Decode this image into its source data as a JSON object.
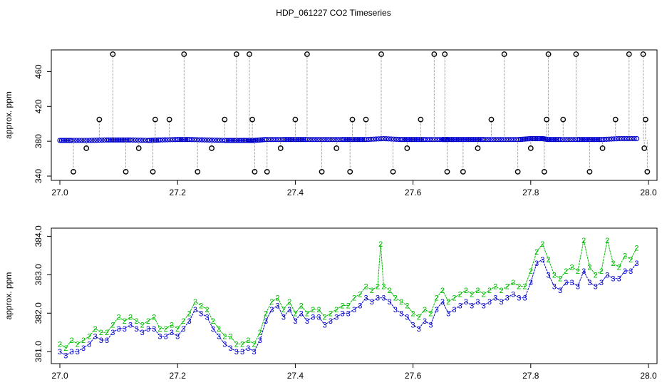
{
  "chart_data": [
    {
      "type": "scatter",
      "title": "HDP_061227  CO2 Timeseries",
      "xlabel": "",
      "ylabel": "approx. ppm",
      "xlim": [
        27.0,
        28.0
      ],
      "ylim": [
        340,
        480
      ],
      "x_ticks": [
        27.0,
        27.2,
        27.4,
        27.6,
        27.8,
        28.0
      ],
      "x_tick_labels": [
        "27.0",
        "27.2",
        "27.4",
        "27.6",
        "27.8",
        "28.0"
      ],
      "y_ticks": [
        340,
        380,
        420,
        460
      ],
      "y_tick_labels": [
        "340",
        "380",
        "420",
        "460"
      ],
      "grid": false,
      "series": [
        {
          "color": "#0000cc",
          "marker": "circle",
          "x": [
            27.0,
            27.02,
            27.05,
            27.08,
            27.1,
            27.12,
            27.15,
            27.17,
            27.2,
            27.22,
            27.25,
            27.28,
            27.3,
            27.32,
            27.33,
            27.35,
            27.38,
            27.4,
            27.42,
            27.45,
            27.48,
            27.5,
            27.52,
            27.55,
            27.58,
            27.6,
            27.62,
            27.65,
            27.66,
            27.68,
            27.7,
            27.72,
            27.75,
            27.78,
            27.8,
            27.82,
            27.83,
            27.85,
            27.88,
            27.9,
            27.92,
            27.95,
            27.98
          ],
          "y": [
            381,
            381,
            381,
            381.5,
            381.5,
            381.5,
            381,
            381.5,
            382,
            382,
            381.5,
            381,
            381,
            381,
            381,
            382,
            382,
            382,
            382,
            382,
            382,
            382,
            382,
            383,
            382,
            382,
            382,
            382,
            382,
            382,
            382,
            382,
            382,
            382,
            383,
            383,
            382,
            382,
            382,
            382,
            382,
            383,
            383
          ]
        },
        {
          "color": "#000000",
          "marker": "open-circle",
          "x": [
            27.023,
            27.045,
            27.067,
            27.09,
            27.112,
            27.134,
            27.158,
            27.162,
            27.186,
            27.211,
            27.234,
            27.258,
            27.28,
            27.3,
            27.322,
            27.327,
            27.331,
            27.352,
            27.375,
            27.4,
            27.42,
            27.445,
            27.47,
            27.493,
            27.497,
            27.52,
            27.546,
            27.566,
            27.59,
            27.613,
            27.636,
            27.654,
            27.658,
            27.685,
            27.71,
            27.733,
            27.755,
            27.778,
            27.8,
            27.823,
            27.827,
            27.83,
            27.855,
            27.877,
            27.9,
            27.922,
            27.944,
            27.967,
            27.991,
            27.995,
            27.993,
            27.998
          ],
          "y": [
            345,
            372,
            405,
            480,
            345,
            372,
            345,
            405,
            405,
            480,
            345,
            372,
            405,
            480,
            480,
            405,
            345,
            345,
            372,
            405,
            480,
            345,
            372,
            345,
            405,
            405,
            480,
            345,
            372,
            405,
            480,
            480,
            345,
            345,
            372,
            405,
            480,
            345,
            372,
            345,
            405,
            480,
            405,
            480,
            345,
            372,
            405,
            480,
            480,
            405,
            372,
            345
          ]
        }
      ]
    },
    {
      "type": "scatter",
      "title": "",
      "xlabel": "",
      "ylabel": "approx. ppm",
      "xlim": [
        27.0,
        28.0
      ],
      "ylim": [
        380.8,
        384.1
      ],
      "x_ticks": [
        27.0,
        27.2,
        27.4,
        27.6,
        27.8,
        28.0
      ],
      "x_tick_labels": [
        "27.0",
        "27.2",
        "27.4",
        "27.6",
        "27.8",
        "28.0"
      ],
      "y_ticks": [
        381.0,
        382.0,
        383.0,
        384.0
      ],
      "y_tick_labels": [
        "381.0",
        "382.0",
        "383.0",
        "384.0"
      ],
      "grid": false,
      "series": [
        {
          "name": "2",
          "color": "#00bb00",
          "marker": "2",
          "x": [
            27.0,
            27.01,
            27.02,
            27.03,
            27.04,
            27.05,
            27.06,
            27.07,
            27.08,
            27.09,
            27.1,
            27.11,
            27.12,
            27.13,
            27.14,
            27.15,
            27.16,
            27.17,
            27.18,
            27.19,
            27.2,
            27.21,
            27.22,
            27.23,
            27.24,
            27.25,
            27.26,
            27.27,
            27.28,
            27.29,
            27.3,
            27.31,
            27.32,
            27.33,
            27.34,
            27.35,
            27.36,
            27.37,
            27.38,
            27.39,
            27.4,
            27.41,
            27.42,
            27.43,
            27.44,
            27.45,
            27.46,
            27.47,
            27.48,
            27.49,
            27.5,
            27.51,
            27.52,
            27.53,
            27.54,
            27.545,
            27.55,
            27.56,
            27.57,
            27.58,
            27.59,
            27.6,
            27.61,
            27.62,
            27.63,
            27.64,
            27.65,
            27.66,
            27.67,
            27.68,
            27.69,
            27.7,
            27.71,
            27.72,
            27.73,
            27.74,
            27.75,
            27.76,
            27.77,
            27.78,
            27.79,
            27.8,
            27.81,
            27.82,
            27.83,
            27.84,
            27.85,
            27.86,
            27.87,
            27.88,
            27.89,
            27.9,
            27.91,
            27.92,
            27.93,
            27.94,
            27.95,
            27.96,
            27.97,
            27.98
          ],
          "y": [
            381.2,
            381.1,
            381.3,
            381.2,
            381.3,
            381.4,
            381.6,
            381.5,
            381.5,
            381.7,
            381.9,
            381.8,
            381.9,
            381.8,
            381.7,
            381.8,
            381.9,
            381.6,
            381.6,
            381.7,
            381.6,
            381.8,
            382.0,
            382.3,
            382.2,
            382.1,
            381.8,
            381.6,
            381.4,
            381.4,
            381.2,
            381.2,
            381.3,
            381.2,
            381.5,
            382.0,
            382.3,
            382.4,
            382.1,
            382.3,
            382.0,
            382.2,
            382.0,
            382.1,
            382.1,
            381.9,
            382.0,
            382.1,
            382.2,
            382.2,
            382.4,
            382.5,
            382.7,
            382.6,
            382.7,
            383.8,
            382.7,
            382.6,
            382.4,
            382.3,
            382.2,
            382.0,
            381.9,
            382.1,
            382.0,
            382.4,
            382.6,
            382.3,
            382.4,
            382.5,
            382.6,
            382.5,
            382.6,
            382.5,
            382.6,
            382.7,
            382.6,
            382.7,
            382.8,
            382.7,
            382.7,
            383.1,
            383.6,
            383.8,
            383.4,
            383.0,
            382.9,
            383.1,
            383.2,
            383.1,
            383.9,
            383.2,
            383.0,
            383.1,
            383.9,
            383.3,
            383.2,
            383.5,
            383.4,
            383.7
          ]
        },
        {
          "name": "3",
          "color": "#0000cc",
          "marker": "3",
          "x": [
            27.0,
            27.01,
            27.02,
            27.03,
            27.04,
            27.05,
            27.06,
            27.07,
            27.08,
            27.09,
            27.1,
            27.11,
            27.12,
            27.13,
            27.14,
            27.15,
            27.16,
            27.17,
            27.18,
            27.19,
            27.2,
            27.21,
            27.22,
            27.23,
            27.24,
            27.25,
            27.26,
            27.27,
            27.28,
            27.29,
            27.3,
            27.31,
            27.32,
            27.33,
            27.34,
            27.35,
            27.36,
            27.37,
            27.38,
            27.39,
            27.4,
            27.41,
            27.42,
            27.43,
            27.44,
            27.45,
            27.46,
            27.47,
            27.48,
            27.49,
            27.5,
            27.51,
            27.52,
            27.53,
            27.54,
            27.55,
            27.56,
            27.57,
            27.58,
            27.59,
            27.6,
            27.61,
            27.62,
            27.63,
            27.64,
            27.65,
            27.66,
            27.67,
            27.68,
            27.69,
            27.7,
            27.71,
            27.72,
            27.73,
            27.74,
            27.75,
            27.76,
            27.77,
            27.78,
            27.79,
            27.8,
            27.81,
            27.82,
            27.83,
            27.84,
            27.85,
            27.86,
            27.87,
            27.88,
            27.89,
            27.9,
            27.91,
            27.92,
            27.93,
            27.94,
            27.95,
            27.96,
            27.97,
            27.98
          ],
          "y": [
            381.0,
            380.9,
            381.0,
            381.0,
            381.1,
            381.2,
            381.4,
            381.3,
            381.3,
            381.5,
            381.6,
            381.6,
            381.7,
            381.6,
            381.5,
            381.6,
            381.6,
            381.4,
            381.4,
            381.5,
            381.4,
            381.6,
            381.8,
            382.1,
            382.0,
            381.9,
            381.6,
            381.4,
            381.2,
            381.1,
            381.0,
            381.0,
            381.1,
            381.0,
            381.3,
            381.8,
            382.1,
            382.2,
            381.9,
            382.1,
            381.8,
            382.0,
            381.8,
            381.9,
            381.9,
            381.7,
            381.8,
            381.9,
            382.0,
            382.0,
            382.1,
            382.2,
            382.4,
            382.3,
            382.4,
            382.4,
            382.3,
            382.1,
            382.0,
            381.9,
            381.7,
            381.6,
            381.8,
            381.7,
            382.1,
            382.3,
            382.0,
            382.1,
            382.2,
            382.3,
            382.2,
            382.3,
            382.2,
            382.3,
            382.4,
            382.3,
            382.4,
            382.5,
            382.4,
            382.4,
            382.8,
            383.3,
            383.4,
            383.0,
            382.7,
            382.6,
            382.8,
            382.8,
            382.7,
            383.1,
            382.8,
            382.7,
            382.8,
            383.0,
            382.9,
            382.9,
            383.1,
            383.1,
            383.3
          ]
        }
      ]
    }
  ]
}
